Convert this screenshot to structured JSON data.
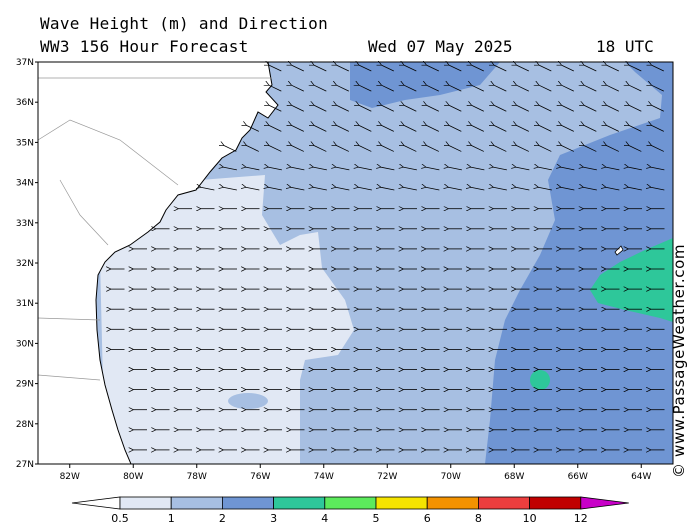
{
  "title": {
    "line1": "Wave Height (m) and Direction",
    "line2": "WW3 156 Hour Forecast",
    "date": "Wed 07 May 2025",
    "time": "18 UTC"
  },
  "credit": "© www.PassageWeather.com",
  "map": {
    "lat_range": [
      27,
      37
    ],
    "lon_range": [
      -83,
      -63
    ],
    "lat_labels": [
      "37N",
      "36N",
      "35N",
      "34N",
      "33N",
      "32N",
      "31N",
      "30N",
      "29N",
      "28N",
      "27N"
    ],
    "lon_labels": [
      "82W",
      "80W",
      "78W",
      "76W",
      "74W",
      "72W",
      "70W",
      "68W",
      "66W",
      "64W"
    ],
    "wave_direction": "predominantly from the east"
  },
  "colorbar": {
    "labels": [
      "0.5",
      "1",
      "2",
      "3",
      "4",
      "5",
      "6",
      "8",
      "10",
      "12"
    ],
    "colors": [
      "#e1e8f4",
      "#a7bfe2",
      "#6f95d3",
      "#2ec79a",
      "#5cea5c",
      "#f5e400",
      "#f39200",
      "#ec3e3e",
      "#c00000",
      "#c800c8"
    ]
  }
}
